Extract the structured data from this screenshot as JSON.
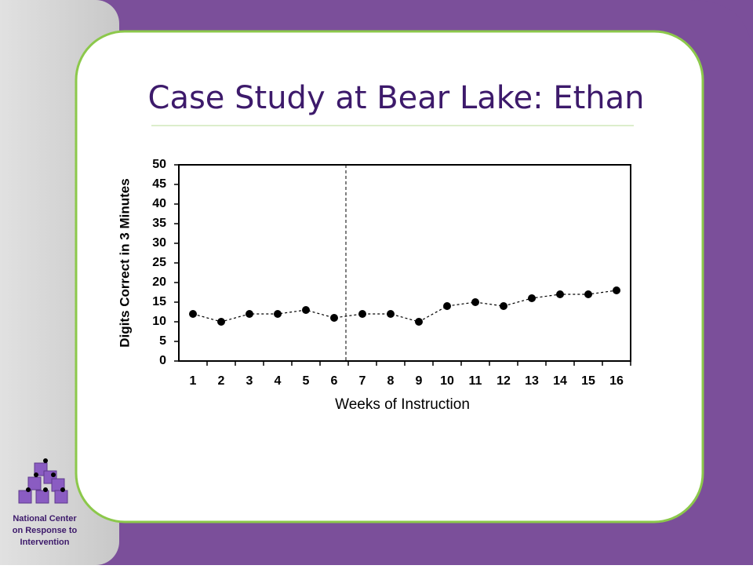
{
  "organization": {
    "lines": [
      "National Center",
      "on Response to",
      "Intervention"
    ]
  },
  "chart_data": {
    "type": "line",
    "title": "Case Study at Bear Lake: Ethan",
    "x_label": "Weeks of Instruction",
    "y_label": "Digits Correct in 3 Minutes",
    "categories": [
      "1",
      "2",
      "3",
      "4",
      "5",
      "6",
      "7",
      "8",
      "9",
      "10",
      "11",
      "12",
      "13",
      "14",
      "15",
      "16"
    ],
    "series": [
      {
        "color": "#000000",
        "values": [
          12,
          10,
          12,
          12,
          13,
          11,
          12,
          12,
          10,
          14,
          15,
          14,
          16,
          17,
          17,
          18
        ]
      }
    ],
    "ylim": [
      0,
      50
    ],
    "yticks": [
      0,
      5,
      10,
      15,
      20,
      25,
      30,
      35,
      40,
      45,
      50
    ],
    "grid": false
  }
}
